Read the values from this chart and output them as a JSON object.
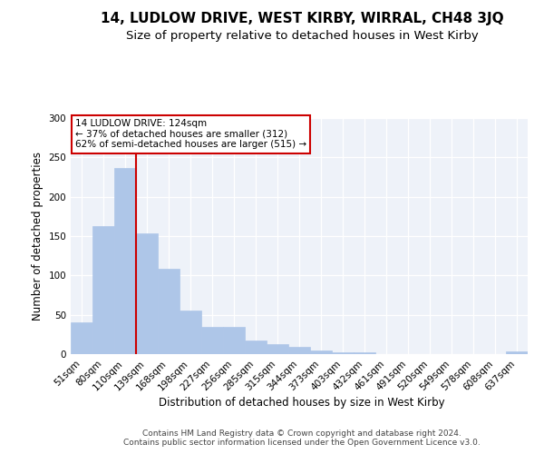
{
  "title": "14, LUDLOW DRIVE, WEST KIRBY, WIRRAL, CH48 3JQ",
  "subtitle": "Size of property relative to detached houses in West Kirby",
  "xlabel": "Distribution of detached houses by size in West Kirby",
  "ylabel": "Number of detached properties",
  "categories": [
    "51sqm",
    "80sqm",
    "110sqm",
    "139sqm",
    "168sqm",
    "198sqm",
    "227sqm",
    "256sqm",
    "285sqm",
    "315sqm",
    "344sqm",
    "373sqm",
    "403sqm",
    "432sqm",
    "461sqm",
    "491sqm",
    "520sqm",
    "549sqm",
    "578sqm",
    "608sqm",
    "637sqm"
  ],
  "values": [
    40,
    163,
    237,
    153,
    109,
    55,
    35,
    35,
    17,
    13,
    9,
    5,
    2,
    2,
    0,
    0,
    0,
    0,
    0,
    0,
    4
  ],
  "bar_color": "#aec6e8",
  "bar_edge_color": "#aec6e8",
  "vline_x": 2.5,
  "vline_color": "#cc0000",
  "annotation_text": "14 LUDLOW DRIVE: 124sqm\n← 37% of detached houses are smaller (312)\n62% of semi-detached houses are larger (515) →",
  "annotation_box_color": "#ffffff",
  "annotation_box_edgecolor": "#cc0000",
  "ylim": [
    0,
    300
  ],
  "yticks": [
    0,
    50,
    100,
    150,
    200,
    250,
    300
  ],
  "footer_line1": "Contains HM Land Registry data © Crown copyright and database right 2024.",
  "footer_line2": "Contains public sector information licensed under the Open Government Licence v3.0.",
  "background_color": "#eef2f9",
  "fig_background": "#ffffff",
  "title_fontsize": 11,
  "subtitle_fontsize": 9.5,
  "label_fontsize": 8.5,
  "tick_fontsize": 7.5,
  "footer_fontsize": 6.5,
  "ann_fontsize": 7.5
}
